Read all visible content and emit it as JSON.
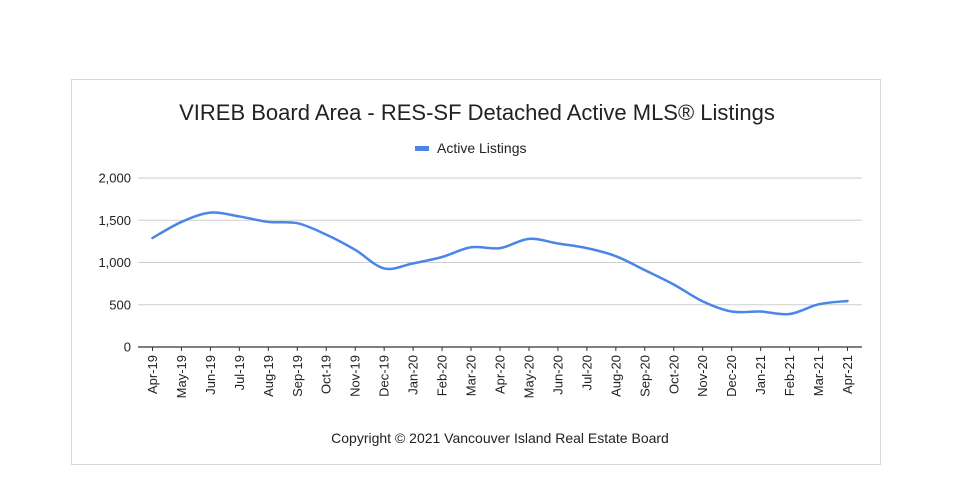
{
  "chart_data": {
    "type": "line",
    "title": "VIREB Board Area - RES-SF Detached Active MLS® Listings",
    "xlabel": "",
    "ylabel": "",
    "ylim": [
      0,
      2000
    ],
    "yticks": [
      "0",
      "500",
      "1,000",
      "1,500",
      "2,000"
    ],
    "ytick_values": [
      0,
      500,
      1000,
      1500,
      2000
    ],
    "grid": true,
    "legend": "top-center",
    "categories": [
      "Apr-19",
      "May-19",
      "Jun-19",
      "Jul-19",
      "Aug-19",
      "Sep-19",
      "Oct-19",
      "Nov-19",
      "Dec-19",
      "Jan-20",
      "Feb-20",
      "Mar-20",
      "Apr-20",
      "May-20",
      "Jun-20",
      "Jul-20",
      "Aug-20",
      "Sep-20",
      "Oct-20",
      "Nov-20",
      "Dec-20",
      "Jan-21",
      "Feb-21",
      "Mar-21",
      "Apr-21"
    ],
    "series": [
      {
        "name": "Active Listings",
        "color": "#4a86e8",
        "values": [
          1290,
          1480,
          1590,
          1545,
          1480,
          1465,
          1330,
          1150,
          930,
          990,
          1065,
          1180,
          1170,
          1280,
          1225,
          1170,
          1075,
          910,
          740,
          540,
          420,
          420,
          390,
          505,
          545
        ]
      }
    ],
    "footer": "Copyright © 2021 Vancouver Island Real Estate Board"
  }
}
